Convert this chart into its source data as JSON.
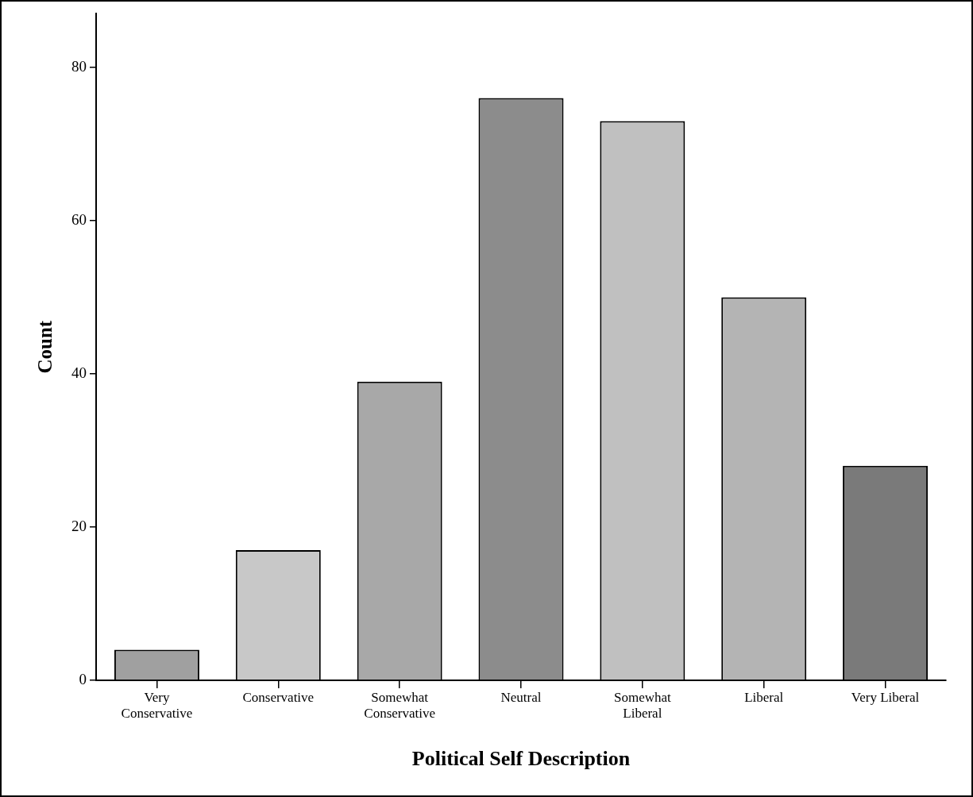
{
  "chart_data": {
    "type": "bar",
    "xlabel": "Political Self Description",
    "ylabel": "Count",
    "categories": [
      "Very Conservative",
      "Conservative",
      "Somewhat Conservative",
      "Neutral",
      "Somewhat Liberal",
      "Liberal",
      "Very Liberal"
    ],
    "values": [
      4,
      17,
      39,
      76,
      73,
      50,
      28
    ],
    "colors": [
      "#a0a0a0",
      "#c8c8c8",
      "#a8a8a8",
      "#8c8c8c",
      "#c0c0c0",
      "#b4b4b4",
      "#7a7a7a"
    ],
    "ylim": [
      0,
      87
    ],
    "yticks": [
      0,
      20,
      40,
      60,
      80
    ],
    "grid": false,
    "legend": false
  }
}
